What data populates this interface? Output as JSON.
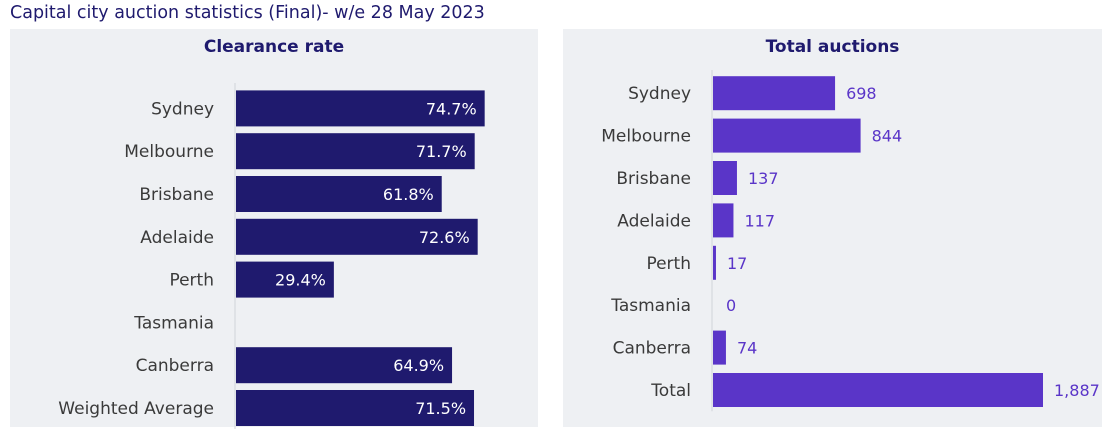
{
  "page_title": "Capital city auction statistics (Final)- w/e 28 May 2023",
  "colors": {
    "panel_bg": "#eef0f3",
    "clearance_bar": "#1f1a6e",
    "auctions_bar": "#5a35c8",
    "title_text": "#1f1a6e",
    "category_text": "#3a3a3a"
  },
  "chart_data": [
    {
      "type": "bar",
      "orientation": "horizontal",
      "title": "Clearance rate",
      "categories": [
        "Sydney",
        "Melbourne",
        "Brisbane",
        "Adelaide",
        "Perth",
        "Tasmania",
        "Canberra",
        "Weighted Average"
      ],
      "values": [
        74.7,
        71.7,
        61.8,
        72.6,
        29.4,
        null,
        64.9,
        71.5
      ],
      "labels": [
        "74.7%",
        "71.7%",
        "61.8%",
        "72.6%",
        "29.4%",
        "",
        "64.9%",
        "71.5%"
      ],
      "unit": "%",
      "xlim": [
        0,
        76
      ]
    },
    {
      "type": "bar",
      "orientation": "horizontal",
      "title": "Total auctions",
      "categories": [
        "Sydney",
        "Melbourne",
        "Brisbane",
        "Adelaide",
        "Perth",
        "Tasmania",
        "Canberra",
        "Total"
      ],
      "values": [
        698,
        844,
        137,
        117,
        17,
        0,
        74,
        1887
      ],
      "labels": [
        "698",
        "844",
        "137",
        "117",
        "17",
        "0",
        "74",
        "1,887"
      ],
      "xlim": [
        0,
        1887
      ]
    }
  ]
}
